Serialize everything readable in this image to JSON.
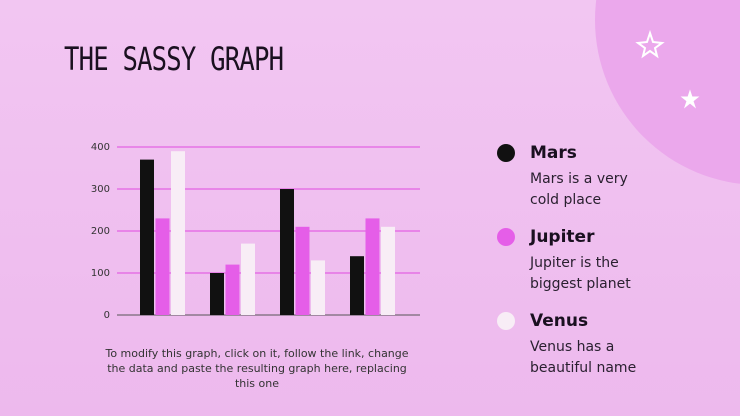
{
  "chart_data": {
    "type": "bar",
    "title": "THE SASSY GRAPH",
    "categories": [
      null,
      null,
      null,
      null
    ],
    "series": [
      {
        "name": "Mars",
        "description": "Mars is a very cold place",
        "color": "#111111",
        "values": [
          370,
          100,
          300,
          140
        ]
      },
      {
        "name": "Jupiter",
        "description": "Jupiter is the biggest planet",
        "color": "#e55ee8",
        "values": [
          230,
          120,
          210,
          230
        ]
      },
      {
        "name": "Venus",
        "description": "Venus has a beautiful name",
        "color": "#f8edf6",
        "values": [
          390,
          170,
          130,
          210
        ]
      }
    ],
    "ylim": [
      0,
      400
    ],
    "yticks": [
      0,
      100,
      200,
      300,
      400
    ],
    "grid": true,
    "grid_color": "#e04ae0",
    "note": "To modify this graph, click on it, follow the link, change the data and paste the resulting graph here, replacing this one"
  }
}
